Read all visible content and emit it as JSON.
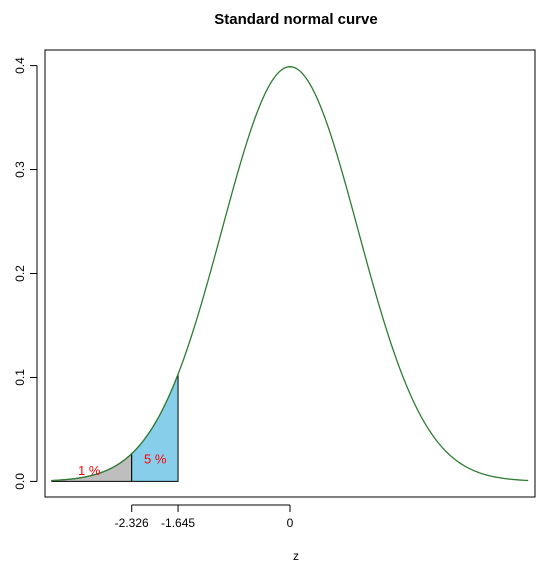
{
  "chart_data": {
    "type": "area",
    "title": "Standard normal curve",
    "xlabel": "z",
    "ylabel": "",
    "xlim": [
      -3.6,
      3.6
    ],
    "ylim": [
      -0.015,
      0.415
    ],
    "function": "standard-normal-density",
    "curve_range": [
      -3.5,
      3.5
    ],
    "curve_color": "#2e7d32",
    "yticks": [
      "0.0",
      "0.1",
      "0.2",
      "0.3",
      "0.4"
    ],
    "ytick_values": [
      0.0,
      0.1,
      0.2,
      0.3,
      0.4
    ],
    "xticks": [
      "-2.326",
      "-1.645",
      "0"
    ],
    "xtick_values": [
      -2.326,
      -1.645,
      0
    ],
    "grid": false,
    "legend": "none",
    "shaded_regions": [
      {
        "from": -3.5,
        "to": -2.326,
        "color": "#bebebe",
        "label": "1 %",
        "label_x": -2.95,
        "label_y": 0.006
      },
      {
        "from": -2.326,
        "to": -1.645,
        "color": "#87ceeb",
        "label": "5 %",
        "label_x": -1.98,
        "label_y": 0.017
      }
    ],
    "label_color": "#ff0000"
  }
}
